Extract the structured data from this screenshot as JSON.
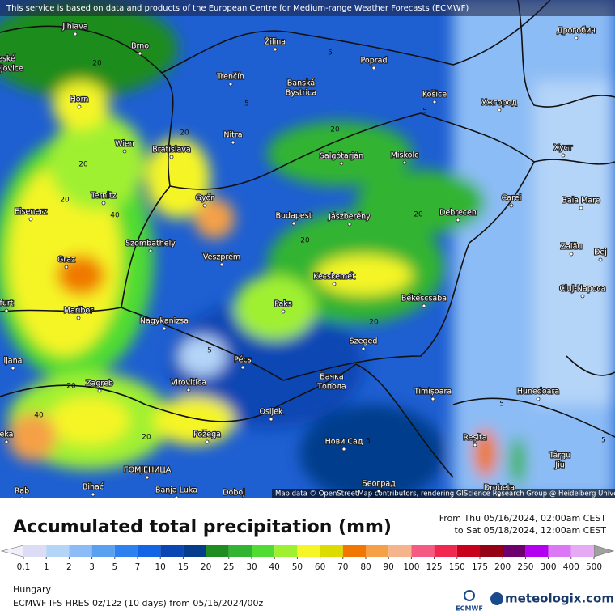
{
  "header": {
    "notice": "This service is based on data and products of the European Centre for Medium-range Weather Forecasts (ECMWF)",
    "attribution": "Map data © OpenStreetMap contributors, rendering GIScience Research Group @ Heidelberg University"
  },
  "cities": [
    "Jihlava",
    "Brno",
    "Žilina",
    "Poprad",
    "Дрогобич",
    "Trenčín",
    "Banská",
    "Bystrica",
    "Košice",
    "Ужгород",
    "Horn",
    "Nitra",
    "Wien",
    "Bratislava",
    "Salgótarján",
    "Miskolc",
    "Хуст",
    "Ternitz",
    "Győr",
    "Carei",
    "Baia Mare",
    "Eisenerz",
    "Budapest",
    "Jászberény",
    "Debrecen",
    "Szombathely",
    "Zalău",
    "Graz",
    "Veszprém",
    "Kecskemét",
    "Cluj-Napoca",
    "Békéscsaba",
    "Paks",
    "Maribor",
    "Nagykanizsa",
    "Szeged",
    "Pécs",
    "Бачка",
    "Топола",
    "Hunedoara",
    "Timișoara",
    "Virovitica",
    "Zagreb",
    "Osijek",
    "Požega",
    "Нови Сад",
    "Reșita",
    "Târgu",
    "Jiu",
    "ГОМЈЕНИЦА",
    "Banja Luka",
    "Bihać",
    "Doboj",
    "Београд",
    "Drobeta",
    "Rab",
    "eské",
    "ějovice",
    "ljana",
    "furt",
    "eka",
    "Dej"
  ],
  "contour_labels": [
    20,
    5,
    5,
    20,
    20,
    20,
    20,
    40,
    20,
    20,
    5,
    20,
    5,
    20,
    40,
    20,
    5,
    5,
    5
  ],
  "legend": {
    "title": "Accumulated total precipitation (mm)",
    "period_from": "From Thu 05/16/2024, 02:00am CEST",
    "period_to": "to Sat 05/18/2024, 12:00am CEST",
    "ticks": [
      0.1,
      1,
      2,
      3,
      5,
      7,
      10,
      15,
      20,
      25,
      30,
      40,
      50,
      60,
      70,
      80,
      90,
      100,
      125,
      150,
      175,
      200,
      250,
      300,
      400,
      500
    ],
    "colors": [
      "#dcdcf5",
      "#b4d4f8",
      "#8cbcf5",
      "#5aa0f0",
      "#2d82f0",
      "#1464e6",
      "#0a46b4",
      "#063c8c",
      "#1e8c1e",
      "#32b432",
      "#50dc32",
      "#a0f032",
      "#f5f528",
      "#dcdc00",
      "#f07800",
      "#f5a046",
      "#f5b48c",
      "#f55a82",
      "#f02850",
      "#c8001e",
      "#960014",
      "#6e006e",
      "#b400f0",
      "#dc78f5",
      "#e6aaf5"
    ],
    "under_color": "#f0f0fa",
    "over_color": "#a0a0a0"
  },
  "footer": {
    "region": "Hungary",
    "model": "ECMWF IFS HRES 0z/12z (10 days) from 05/16/2024/00z",
    "ecmwf": "ECMWF",
    "brand": "meteologix.com"
  }
}
